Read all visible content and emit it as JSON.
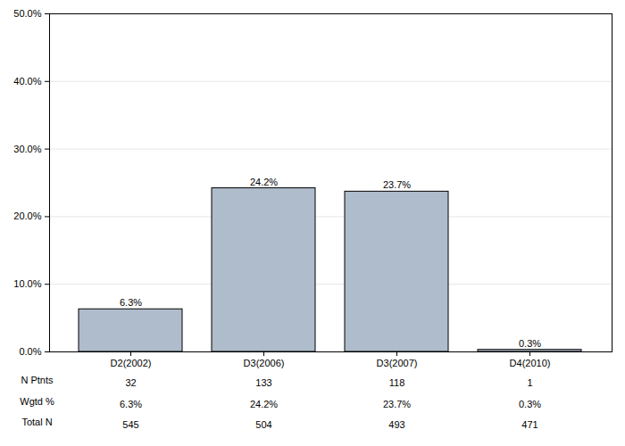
{
  "chart_data": {
    "type": "bar",
    "categories": [
      "D2(2002)",
      "D3(2006)",
      "D3(2007)",
      "D4(2010)"
    ],
    "values": [
      6.3,
      24.2,
      23.7,
      0.3
    ],
    "value_labels": [
      "6.3%",
      "24.2%",
      "23.7%",
      "0.3%"
    ],
    "data_labels": true,
    "color": "#aebccb",
    "ylim": [
      0,
      50
    ],
    "yticks": [
      {
        "value": 0,
        "label": "0.0%"
      },
      {
        "value": 10,
        "label": "10.0%"
      },
      {
        "value": 20,
        "label": "20.0%"
      },
      {
        "value": 30,
        "label": "30.0%"
      },
      {
        "value": 40,
        "label": "40.0%"
      },
      {
        "value": 50,
        "label": "50.0%"
      }
    ],
    "grid": true,
    "table": {
      "rows": [
        {
          "label": "N Ptnts",
          "values": [
            32,
            133,
            118,
            1
          ]
        },
        {
          "label": "Wgtd %",
          "values": [
            6.3,
            24.2,
            23.7,
            0.3
          ],
          "value_labels": [
            "6.3%",
            "24.2%",
            "23.7%",
            "0.3%"
          ]
        },
        {
          "label": "Total N",
          "values": [
            545,
            504,
            493,
            471
          ]
        }
      ]
    }
  }
}
